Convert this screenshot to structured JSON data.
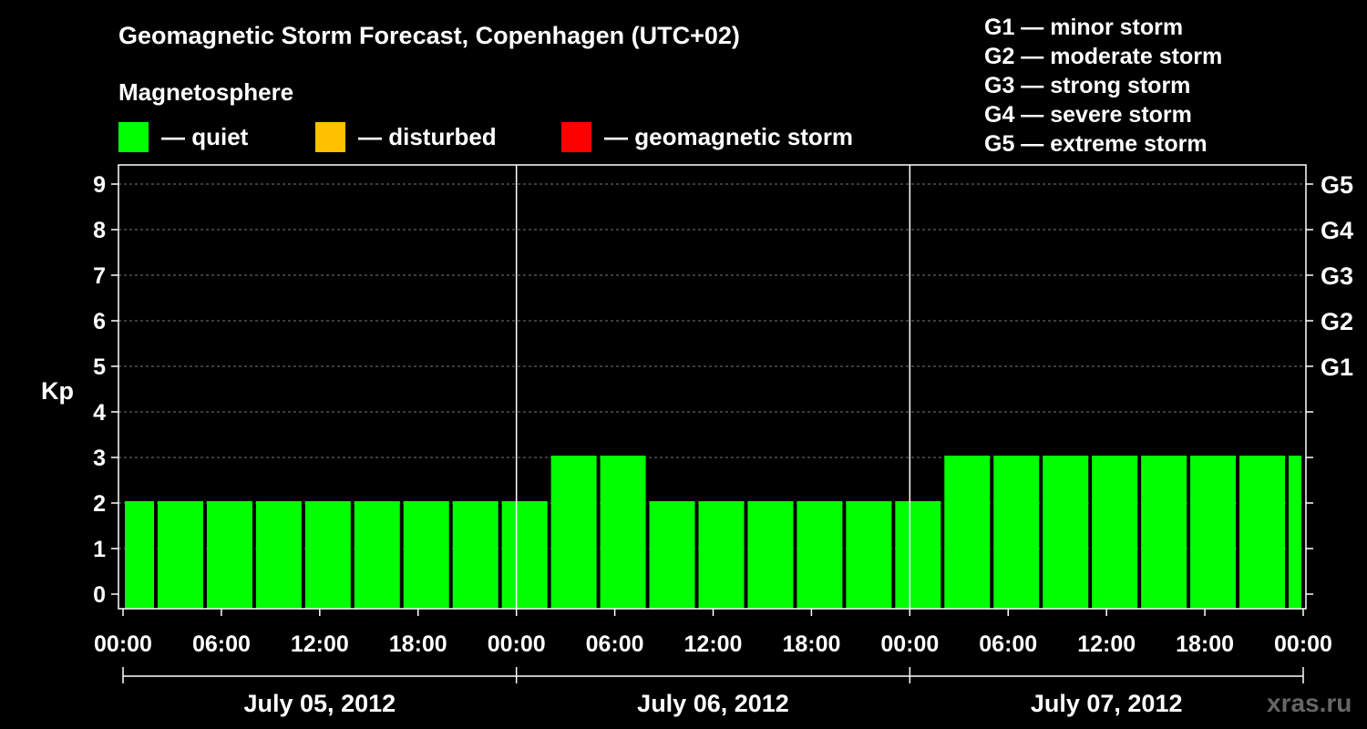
{
  "title": "Geomagnetic Storm Forecast, Copenhagen (UTC+02)",
  "magnetosphere_label": "Magnetosphere",
  "legend": [
    {
      "label": "— quiet",
      "color": "#00ff00"
    },
    {
      "label": "— disturbed",
      "color": "#ffc000"
    },
    {
      "label": "— geomagnetic storm",
      "color": "#ff0000"
    }
  ],
  "storm_scale": [
    "G1 — minor storm",
    "G2 — moderate storm",
    "G3 — strong storm",
    "G4 — severe storm",
    "G5 — extreme storm"
  ],
  "watermark": "xras.ru",
  "chart_data": {
    "type": "bar",
    "title": "Geomagnetic Storm Forecast, Copenhagen (UTC+02)",
    "ylabel": "Kp",
    "ylim": [
      0,
      9
    ],
    "yticks": [
      0,
      1,
      2,
      3,
      4,
      5,
      6,
      7,
      8,
      9
    ],
    "right_axis_labels": [
      {
        "kp": 5,
        "label": "G1"
      },
      {
        "kp": 6,
        "label": "G2"
      },
      {
        "kp": 7,
        "label": "G3"
      },
      {
        "kp": 8,
        "label": "G4"
      },
      {
        "kp": 9,
        "label": "G5"
      }
    ],
    "xlim_hours": [
      0,
      72
    ],
    "x_tick_labels": [
      "00:00",
      "06:00",
      "12:00",
      "18:00",
      "00:00",
      "06:00",
      "12:00",
      "18:00",
      "00:00",
      "06:00",
      "12:00",
      "18:00",
      "00:00"
    ],
    "days": [
      "July 05, 2012",
      "July 06, 2012",
      "July 07, 2012"
    ],
    "grid": "horizontal dashed",
    "bar_color": "#00ff00",
    "bars": [
      {
        "start": "July 05, 2012 00:00",
        "end": "July 05, 2012 02:00",
        "kp": 2
      },
      {
        "start": "July 05, 2012 02:00",
        "end": "July 05, 2012 05:00",
        "kp": 2
      },
      {
        "start": "July 05, 2012 05:00",
        "end": "July 05, 2012 08:00",
        "kp": 2
      },
      {
        "start": "July 05, 2012 08:00",
        "end": "July 05, 2012 11:00",
        "kp": 2
      },
      {
        "start": "July 05, 2012 11:00",
        "end": "July 05, 2012 14:00",
        "kp": 2
      },
      {
        "start": "July 05, 2012 14:00",
        "end": "July 05, 2012 17:00",
        "kp": 2
      },
      {
        "start": "July 05, 2012 17:00",
        "end": "July 05, 2012 20:00",
        "kp": 2
      },
      {
        "start": "July 05, 2012 20:00",
        "end": "July 05, 2012 23:00",
        "kp": 2
      },
      {
        "start": "July 05, 2012 23:00",
        "end": "July 06, 2012 02:00",
        "kp": 2
      },
      {
        "start": "July 06, 2012 02:00",
        "end": "July 06, 2012 05:00",
        "kp": 3
      },
      {
        "start": "July 06, 2012 05:00",
        "end": "July 06, 2012 08:00",
        "kp": 3
      },
      {
        "start": "July 06, 2012 08:00",
        "end": "July 06, 2012 11:00",
        "kp": 2
      },
      {
        "start": "July 06, 2012 11:00",
        "end": "July 06, 2012 14:00",
        "kp": 2
      },
      {
        "start": "July 06, 2012 14:00",
        "end": "July 06, 2012 17:00",
        "kp": 2
      },
      {
        "start": "July 06, 2012 17:00",
        "end": "July 06, 2012 20:00",
        "kp": 2
      },
      {
        "start": "July 06, 2012 20:00",
        "end": "July 06, 2012 23:00",
        "kp": 2
      },
      {
        "start": "July 06, 2012 23:00",
        "end": "July 07, 2012 02:00",
        "kp": 2
      },
      {
        "start": "July 07, 2012 02:00",
        "end": "July 07, 2012 05:00",
        "kp": 3
      },
      {
        "start": "July 07, 2012 05:00",
        "end": "July 07, 2012 08:00",
        "kp": 3
      },
      {
        "start": "July 07, 2012 08:00",
        "end": "July 07, 2012 11:00",
        "kp": 3
      },
      {
        "start": "July 07, 2012 11:00",
        "end": "July 07, 2012 14:00",
        "kp": 3
      },
      {
        "start": "July 07, 2012 14:00",
        "end": "July 07, 2012 17:00",
        "kp": 3
      },
      {
        "start": "July 07, 2012 17:00",
        "end": "July 07, 2012 20:00",
        "kp": 3
      },
      {
        "start": "July 07, 2012 20:00",
        "end": "July 07, 2012 23:00",
        "kp": 3
      },
      {
        "start": "July 07, 2012 23:00",
        "end": "July 08, 2012 00:00",
        "kp": 3
      }
    ]
  }
}
